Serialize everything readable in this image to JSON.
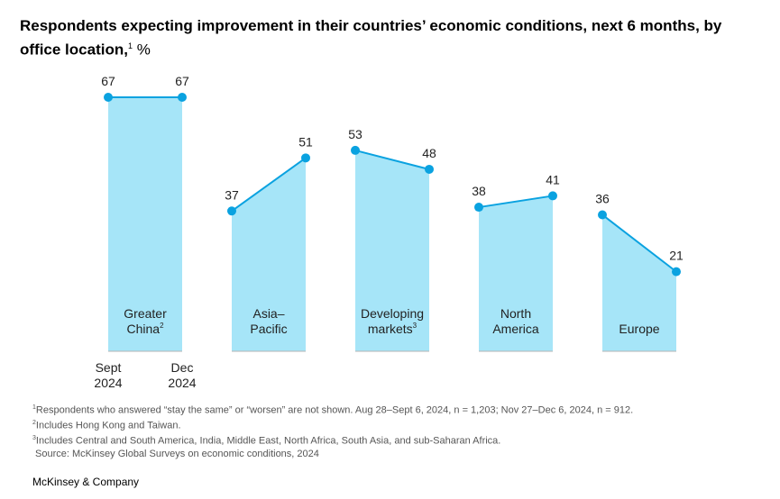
{
  "title": {
    "main": "Respondents expecting improvement in their countries’ economic conditions, next 6 months, by office location,",
    "note_marker": "1",
    "unit": " %"
  },
  "chart_data": {
    "type": "area",
    "x": [
      "Sept 2024",
      "Dec 2024"
    ],
    "x_tick_lines": [
      [
        "Sept",
        "2024"
      ],
      [
        "Dec",
        "2024"
      ]
    ],
    "ylim": [
      0,
      70
    ],
    "grid": false,
    "legend": "none",
    "colors": {
      "fill": "#a6e5f8",
      "line": "#0aa2e0",
      "baseline": "#b5b5b5"
    },
    "series": [
      {
        "name": "Greater China",
        "label_lines": [
          "Greater",
          "China"
        ],
        "note": "2",
        "values": [
          67,
          67
        ]
      },
      {
        "name": "Asia–Pacific",
        "label_lines": [
          "Asia–",
          "Pacific"
        ],
        "note": "",
        "values": [
          37,
          51
        ]
      },
      {
        "name": "Developing markets",
        "label_lines": [
          "Developing",
          "markets"
        ],
        "note": "3",
        "values": [
          53,
          48
        ]
      },
      {
        "name": "North America",
        "label_lines": [
          "North",
          "America"
        ],
        "note": "",
        "values": [
          38,
          41
        ]
      },
      {
        "name": "Europe",
        "label_lines": [
          "Europe"
        ],
        "note": "",
        "values": [
          36,
          21
        ]
      }
    ]
  },
  "footnotes": {
    "n1_marker": "1",
    "n1": "Respondents who answered “stay the same” or “worsen” are not shown. Aug 28–Sept 6, 2024, n = 1,203; Nov 27–Dec 6, 2024, n = 912.",
    "n2_marker": "2",
    "n2": "Includes Hong Kong and Taiwan.",
    "n3_marker": "3",
    "n3": "Includes Central and South America, India, Middle East, North Africa, South Asia, and sub-Saharan Africa.",
    "source": "Source: McKinsey Global Surveys on economic conditions, 2024"
  },
  "brand": "McKinsey & Company"
}
